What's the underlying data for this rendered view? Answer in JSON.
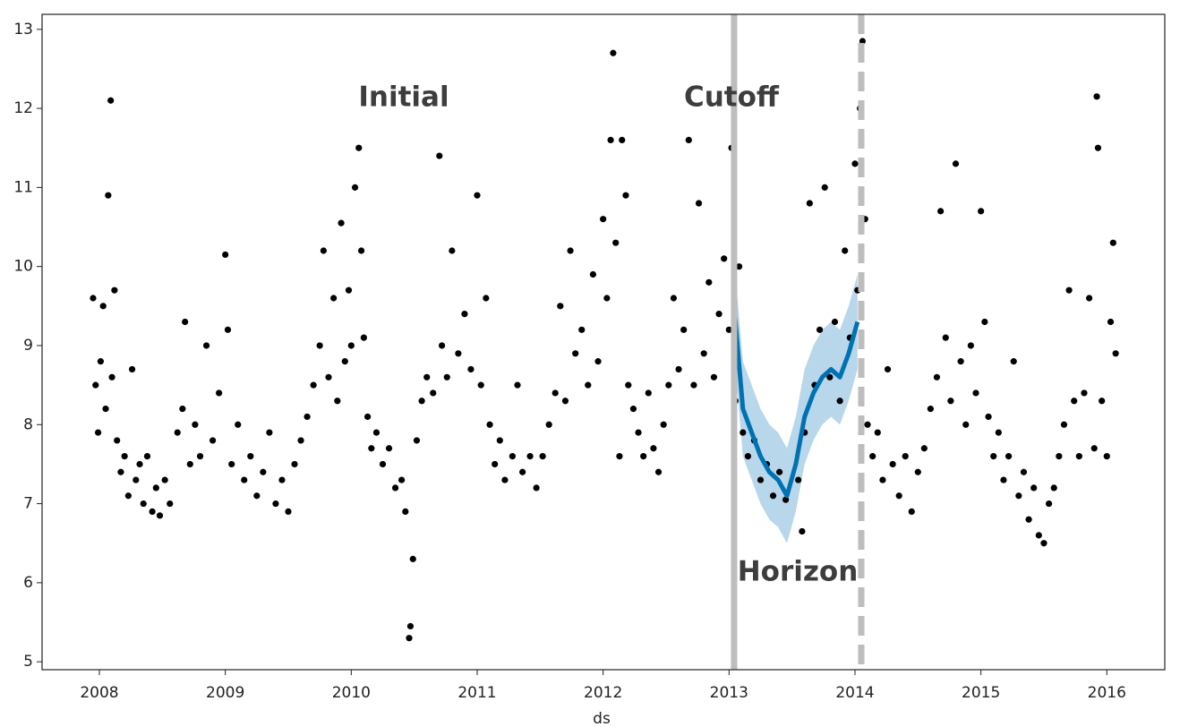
{
  "chart_data": {
    "type": "scatter",
    "xlabel": "ds",
    "color": "#000000",
    "x": [
      2007.95,
      2007.97,
      2007.99,
      2008.01,
      2008.03,
      2008.05,
      2008.07,
      2008.09,
      2008.1,
      2008.12,
      2008.14,
      2008.17,
      2008.2,
      2008.23,
      2008.26,
      2008.29,
      2008.32,
      2008.35,
      2008.38,
      2008.42,
      2008.45,
      2008.48,
      2008.52,
      2008.56,
      2008.62,
      2008.66,
      2008.68,
      2008.72,
      2008.76,
      2008.8,
      2008.85,
      2008.9,
      2008.95,
      2009.0,
      2009.02,
      2009.05,
      2009.1,
      2009.15,
      2009.2,
      2009.25,
      2009.3,
      2009.35,
      2009.4,
      2009.45,
      2009.5,
      2009.55,
      2009.6,
      2009.65,
      2009.7,
      2009.75,
      2009.78,
      2009.82,
      2009.86,
      2009.89,
      2009.92,
      2009.95,
      2009.98,
      2010.0,
      2010.03,
      2010.06,
      2010.08,
      2010.1,
      2010.13,
      2010.16,
      2010.2,
      2010.25,
      2010.3,
      2010.35,
      2010.4,
      2010.43,
      2010.46,
      2010.47,
      2010.49,
      2010.52,
      2010.56,
      2010.6,
      2010.65,
      2010.7,
      2010.72,
      2010.76,
      2010.8,
      2010.85,
      2010.9,
      2010.95,
      2011.0,
      2011.03,
      2011.07,
      2011.1,
      2011.14,
      2011.18,
      2011.22,
      2011.28,
      2011.32,
      2011.36,
      2011.42,
      2011.47,
      2011.52,
      2011.57,
      2011.62,
      2011.66,
      2011.7,
      2011.74,
      2011.78,
      2011.83,
      2011.88,
      2011.92,
      2011.96,
      2012.0,
      2012.03,
      2012.06,
      2012.08,
      2012.1,
      2012.13,
      2012.15,
      2012.18,
      2012.2,
      2012.24,
      2012.28,
      2012.32,
      2012.36,
      2012.4,
      2012.44,
      2012.48,
      2012.52,
      2012.56,
      2012.6,
      2012.64,
      2012.68,
      2012.72,
      2012.76,
      2012.8,
      2012.84,
      2012.88,
      2012.92,
      2012.96,
      2013.0,
      2013.02,
      2013.05,
      2013.08,
      2013.11,
      2013.15,
      2013.2,
      2013.25,
      2013.3,
      2013.35,
      2013.4,
      2013.45,
      2013.55,
      2013.58,
      2013.6,
      2013.64,
      2013.68,
      2013.72,
      2013.76,
      2013.8,
      2013.84,
      2013.88,
      2013.92,
      2013.96,
      2014.0,
      2014.02,
      2014.04,
      2014.06,
      2014.08,
      2014.1,
      2014.14,
      2014.18,
      2014.22,
      2014.26,
      2014.3,
      2014.35,
      2014.4,
      2014.45,
      2014.5,
      2014.55,
      2014.6,
      2014.65,
      2014.68,
      2014.72,
      2014.76,
      2014.8,
      2014.84,
      2014.88,
      2014.92,
      2014.96,
      2015.0,
      2015.03,
      2015.06,
      2015.1,
      2015.14,
      2015.18,
      2015.22,
      2015.26,
      2015.3,
      2015.34,
      2015.38,
      2015.42,
      2015.46,
      2015.5,
      2015.54,
      2015.58,
      2015.62,
      2015.66,
      2015.7,
      2015.74,
      2015.78,
      2015.82,
      2015.86,
      2015.9,
      2015.92,
      2015.93,
      2015.96,
      2016.0,
      2016.03,
      2016.05,
      2016.07
    ],
    "values": [
      9.6,
      8.5,
      7.9,
      8.8,
      9.5,
      8.2,
      10.9,
      12.1,
      8.6,
      9.7,
      7.8,
      7.4,
      7.6,
      7.1,
      8.7,
      7.3,
      7.5,
      7.0,
      7.6,
      6.9,
      7.2,
      6.85,
      7.3,
      7.0,
      7.9,
      8.2,
      9.3,
      7.5,
      8.0,
      7.6,
      9.0,
      7.8,
      8.4,
      10.15,
      9.2,
      7.5,
      8.0,
      7.3,
      7.6,
      7.1,
      7.4,
      7.9,
      7.0,
      7.3,
      6.9,
      7.5,
      7.8,
      8.1,
      8.5,
      9.0,
      10.2,
      8.6,
      9.6,
      8.3,
      10.55,
      8.8,
      9.7,
      9.0,
      11.0,
      11.5,
      10.2,
      9.1,
      8.1,
      7.7,
      7.9,
      7.5,
      7.7,
      7.2,
      7.3,
      6.9,
      5.3,
      5.45,
      6.3,
      7.8,
      8.3,
      8.6,
      8.4,
      11.4,
      9.0,
      8.6,
      10.2,
      8.9,
      9.4,
      8.7,
      10.9,
      8.5,
      9.6,
      8.0,
      7.5,
      7.8,
      7.3,
      7.6,
      8.5,
      7.4,
      7.6,
      7.2,
      7.6,
      8.0,
      8.4,
      9.5,
      8.3,
      10.2,
      8.9,
      9.2,
      8.5,
      9.9,
      8.8,
      10.6,
      9.6,
      11.6,
      12.7,
      10.3,
      7.6,
      11.6,
      10.9,
      8.5,
      8.2,
      7.9,
      7.6,
      8.4,
      7.7,
      7.4,
      8.0,
      8.5,
      9.6,
      8.7,
      9.2,
      11.6,
      8.5,
      10.8,
      8.9,
      9.8,
      8.6,
      9.4,
      10.1,
      9.2,
      11.5,
      8.3,
      10.0,
      7.9,
      7.6,
      7.8,
      7.3,
      7.5,
      7.1,
      7.4,
      7.05,
      7.3,
      6.65,
      7.9,
      10.8,
      8.5,
      9.2,
      11.0,
      8.6,
      9.3,
      8.3,
      10.2,
      9.1,
      11.3,
      9.7,
      12.0,
      12.85,
      10.6,
      8.0,
      7.6,
      7.9,
      7.3,
      8.7,
      7.5,
      7.1,
      7.6,
      6.9,
      7.4,
      7.7,
      8.2,
      8.6,
      10.7,
      9.1,
      8.3,
      11.3,
      8.8,
      8.0,
      9.0,
      8.4,
      10.7,
      9.3,
      8.1,
      7.6,
      7.9,
      7.3,
      7.6,
      8.8,
      7.1,
      7.4,
      6.8,
      7.2,
      6.6,
      6.5,
      7.0,
      7.2,
      7.6,
      8.0,
      9.7,
      8.3,
      7.6,
      8.4,
      9.6,
      7.7,
      12.15,
      11.5,
      8.3,
      7.6,
      9.3,
      10.3,
      8.9
    ],
    "forecast": {
      "color": "#0072b2",
      "band_color": "#a6cde6",
      "x": [
        2013.04,
        2013.11,
        2013.18,
        2013.25,
        2013.32,
        2013.39,
        2013.46,
        2013.53,
        2013.6,
        2013.67,
        2013.74,
        2013.81,
        2013.88,
        2013.95,
        2014.02
      ],
      "values": [
        9.5,
        8.2,
        7.9,
        7.6,
        7.4,
        7.3,
        7.1,
        7.5,
        8.1,
        8.4,
        8.6,
        8.7,
        8.6,
        8.9,
        9.3
      ],
      "lower": [
        8.9,
        7.6,
        7.3,
        7.0,
        6.8,
        6.7,
        6.5,
        6.9,
        7.5,
        7.8,
        8.0,
        8.1,
        8.0,
        8.3,
        8.7
      ],
      "upper": [
        10.1,
        8.8,
        8.5,
        8.2,
        8.0,
        7.9,
        7.7,
        8.1,
        8.7,
        9.0,
        9.2,
        9.3,
        9.2,
        9.5,
        9.9
      ]
    },
    "cutoff": 2013.04,
    "horizon_end": 2014.05,
    "line_color": "#bdbdbd",
    "annotations": [
      "Initial",
      "Cutoff",
      "Horizon"
    ],
    "xlim": [
      2007.545,
      2016.46
    ],
    "xticks": [
      2008,
      2009,
      2010,
      2011,
      2012,
      2013,
      2014,
      2015,
      2016
    ],
    "ylim": [
      4.9,
      13.19
    ],
    "yticks": [
      5,
      6,
      7,
      8,
      9,
      10,
      11,
      12,
      13
    ]
  }
}
